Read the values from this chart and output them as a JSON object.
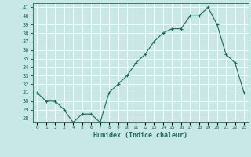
{
  "x": [
    0,
    1,
    2,
    3,
    4,
    5,
    6,
    7,
    8,
    9,
    10,
    11,
    12,
    13,
    14,
    15,
    16,
    17,
    18,
    19,
    20,
    21,
    22,
    23
  ],
  "y": [
    31,
    30,
    30,
    29,
    27.5,
    28.5,
    28.5,
    27.5,
    31,
    32,
    33,
    34.5,
    35.5,
    37,
    38,
    38.5,
    38.5,
    40,
    40,
    41,
    39,
    35.5,
    34.5,
    31
  ],
  "xlabel": "Humidex (Indice chaleur)",
  "xlim": [
    -0.5,
    23.5
  ],
  "ylim": [
    27.5,
    41.5
  ],
  "yticks": [
    28,
    29,
    30,
    31,
    32,
    33,
    34,
    35,
    36,
    37,
    38,
    39,
    40,
    41
  ],
  "xtick_labels": [
    "0",
    "1",
    "2",
    "3",
    "4",
    "5",
    "6",
    "7",
    "8",
    "9",
    "10",
    "11",
    "12",
    "13",
    "14",
    "15",
    "16",
    "17",
    "18",
    "19",
    "20",
    "21",
    "22",
    "23"
  ],
  "line_color": "#1a6b5a",
  "marker": "+",
  "bg_color": "#c8e8e8",
  "grid_color": "#ffffff",
  "label_color": "#1a6b5a",
  "tick_color": "#1a6b5a"
}
